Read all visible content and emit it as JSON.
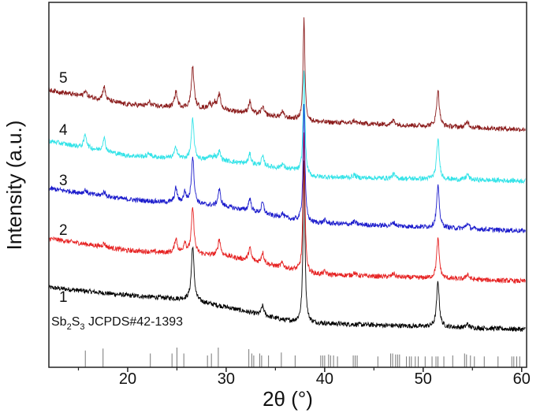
{
  "chart_data": {
    "type": "line",
    "xlabel": "2θ (°)",
    "ylabel": "Intensity (a.u.)",
    "xlim": [
      12,
      60.5
    ],
    "ylim": [
      0,
      100
    ],
    "xticks": [
      20,
      30,
      40,
      50,
      60
    ],
    "xminor_ticks": [
      15,
      25,
      35,
      45,
      55
    ],
    "yticks_labeled": false,
    "grid": false,
    "reference": {
      "label_main": "Sb",
      "sub1": "2",
      "label_mid": "S",
      "sub2": "3",
      "label_rest": " JCPDS#42-1393",
      "color": "#777777",
      "sticks": [
        [
          15.7,
          85
        ],
        [
          17.5,
          95
        ],
        [
          22.3,
          70
        ],
        [
          24.5,
          70
        ],
        [
          25.0,
          100
        ],
        [
          25.7,
          70
        ],
        [
          28.1,
          60
        ],
        [
          28.5,
          70
        ],
        [
          29.2,
          100
        ],
        [
          32.3,
          92
        ],
        [
          32.6,
          70
        ],
        [
          32.8,
          60
        ],
        [
          33.4,
          70
        ],
        [
          33.6,
          60
        ],
        [
          34.3,
          60
        ],
        [
          35.6,
          75
        ],
        [
          37.0,
          60
        ],
        [
          39.6,
          60
        ],
        [
          39.8,
          60
        ],
        [
          40.0,
          60
        ],
        [
          40.4,
          65
        ],
        [
          40.6,
          60
        ],
        [
          40.9,
          60
        ],
        [
          41.3,
          55
        ],
        [
          42.9,
          60
        ],
        [
          43.1,
          60
        ],
        [
          43.3,
          60
        ],
        [
          45.4,
          55
        ],
        [
          46.7,
          70
        ],
        [
          46.9,
          70
        ],
        [
          47.2,
          65
        ],
        [
          47.4,
          65
        ],
        [
          47.6,
          65
        ],
        [
          48.3,
          55
        ],
        [
          48.6,
          55
        ],
        [
          48.8,
          55
        ],
        [
          49.2,
          55
        ],
        [
          49.5,
          55
        ],
        [
          50.2,
          55
        ],
        [
          50.9,
          55
        ],
        [
          51.3,
          55
        ],
        [
          51.5,
          55
        ],
        [
          52.1,
          55
        ],
        [
          53.0,
          60
        ],
        [
          54.2,
          70
        ],
        [
          54.4,
          65
        ],
        [
          54.8,
          60
        ],
        [
          55.2,
          55
        ],
        [
          56.2,
          55
        ],
        [
          57.6,
          55
        ],
        [
          59.0,
          55
        ],
        [
          59.2,
          55
        ],
        [
          59.5,
          55
        ],
        [
          59.8,
          55
        ]
      ]
    },
    "series": [
      {
        "label": "1",
        "color": "#000000",
        "baseline": [
          [
            12,
            21.9
          ],
          [
            20,
            19.7
          ],
          [
            26,
            18.6
          ],
          [
            30,
            16.5
          ],
          [
            36,
            12.8
          ],
          [
            38.5,
            12.1
          ],
          [
            60,
            10.4
          ]
        ],
        "peaks": [
          [
            26.6,
            15
          ],
          [
            33.7,
            2.6
          ],
          [
            37.9,
            45
          ],
          [
            51.5,
            12.5
          ],
          [
            54.5,
            1
          ]
        ]
      },
      {
        "label": "2",
        "color": "#e62222",
        "baseline": [
          [
            12,
            35.3
          ],
          [
            20,
            32
          ],
          [
            30,
            30.5
          ],
          [
            37,
            26.6
          ],
          [
            38.5,
            25.5
          ],
          [
            60,
            23.6
          ]
        ],
        "peaks": [
          [
            17.6,
            1
          ],
          [
            24.9,
            4
          ],
          [
            25.8,
            3
          ],
          [
            26.6,
            12.5
          ],
          [
            29.3,
            4.5
          ],
          [
            32.4,
            3.5
          ],
          [
            33.7,
            3
          ],
          [
            35.7,
            1.2
          ],
          [
            37.9,
            38
          ],
          [
            40,
            0.8
          ],
          [
            43,
            0.8
          ],
          [
            47,
            1
          ],
          [
            51.5,
            10.8
          ],
          [
            54.5,
            1.5
          ]
        ]
      },
      {
        "label": "3",
        "color": "#1c1ccc",
        "baseline": [
          [
            12,
            49
          ],
          [
            20,
            46
          ],
          [
            30,
            44
          ],
          [
            37,
            40.3
          ],
          [
            38.5,
            39.6
          ],
          [
            60,
            37.4
          ]
        ],
        "peaks": [
          [
            15.7,
            1
          ],
          [
            17.6,
            1.2
          ],
          [
            24.9,
            4
          ],
          [
            25.8,
            3
          ],
          [
            26.6,
            13
          ],
          [
            29.3,
            4.5
          ],
          [
            32.4,
            3.5
          ],
          [
            33.7,
            3
          ],
          [
            35.7,
            1.2
          ],
          [
            37.9,
            32
          ],
          [
            40,
            0.8
          ],
          [
            43,
            0.8
          ],
          [
            47,
            1
          ],
          [
            51.5,
            11.3
          ],
          [
            54.5,
            1.5
          ]
        ]
      },
      {
        "label": "4",
        "color": "#33e3e8",
        "baseline": [
          [
            12,
            62
          ],
          [
            20,
            58
          ],
          [
            30,
            56.5
          ],
          [
            37,
            54
          ],
          [
            38.5,
            52.2
          ],
          [
            60,
            51.1
          ]
        ],
        "peaks": [
          [
            15.7,
            3.7
          ],
          [
            17.6,
            3.7
          ],
          [
            22.2,
            1
          ],
          [
            24.9,
            3.2
          ],
          [
            26.6,
            10.8
          ],
          [
            28.3,
            1
          ],
          [
            28.8,
            1.2
          ],
          [
            29.3,
            2.5
          ],
          [
            32.4,
            2.8
          ],
          [
            33.7,
            2.5
          ],
          [
            35.7,
            1.3
          ],
          [
            37.9,
            29
          ],
          [
            43,
            0.8
          ],
          [
            47,
            1.2
          ],
          [
            51.5,
            11
          ],
          [
            54.5,
            1.5
          ]
        ]
      },
      {
        "label": "5",
        "color": "#8b1c1c",
        "baseline": [
          [
            12,
            76
          ],
          [
            20,
            72
          ],
          [
            30,
            70.5
          ],
          [
            37,
            68
          ],
          [
            38.5,
            67.3
          ],
          [
            60,
            65.2
          ]
        ],
        "peaks": [
          [
            15.7,
            1.7
          ],
          [
            17.6,
            3.7
          ],
          [
            22.2,
            1
          ],
          [
            24.9,
            4.3
          ],
          [
            26.6,
            11.3
          ],
          [
            28.3,
            1.5
          ],
          [
            28.8,
            1.8
          ],
          [
            29.3,
            4.1
          ],
          [
            32.4,
            3.2
          ],
          [
            33.7,
            2.2
          ],
          [
            35.7,
            1.5
          ],
          [
            37.9,
            27.7
          ],
          [
            43,
            0.8
          ],
          [
            47,
            1.3
          ],
          [
            51.5,
            10
          ],
          [
            54.5,
            1.7
          ]
        ]
      }
    ]
  }
}
